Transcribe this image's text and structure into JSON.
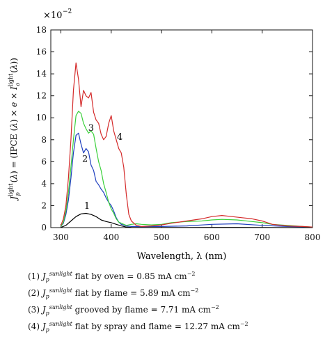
{
  "chart_data": {
    "type": "line",
    "xlabel": "Wavelength, λ (nm)",
    "ylabel": "J_p^light(λ) = (IPCE(λ) × e × I_o^light(λ))",
    "y_multiplier": "×10",
    "y_multiplier_exp": "−2",
    "xlim": [
      280,
      800
    ],
    "ylim": [
      0,
      18
    ],
    "xticks": [
      300,
      400,
      500,
      600,
      700,
      800
    ],
    "yticks": [
      0,
      2,
      4,
      6,
      8,
      10,
      12,
      14,
      16,
      18
    ],
    "grid": false,
    "series": [
      {
        "name": "1",
        "color": "#000000",
        "x": [
          300,
          310,
          320,
          330,
          340,
          350,
          360,
          370,
          380,
          390,
          400,
          410,
          420,
          430,
          440,
          450,
          460,
          500,
          550,
          600,
          650,
          700,
          750,
          800
        ],
        "y": [
          0.02,
          0.2,
          0.6,
          1.0,
          1.25,
          1.3,
          1.2,
          1.0,
          0.7,
          0.55,
          0.45,
          0.3,
          0.15,
          0.05,
          0.02,
          0.01,
          0.01,
          0.01,
          0.01,
          0.02,
          0.02,
          0.01,
          0.0,
          0.0
        ],
        "label_x": 352,
        "label_y": 1.7
      },
      {
        "name": "2",
        "color": "#1f3fbf",
        "x": [
          300,
          305,
          310,
          315,
          320,
          325,
          330,
          335,
          340,
          345,
          350,
          355,
          360,
          365,
          370,
          375,
          380,
          385,
          390,
          395,
          400,
          405,
          410,
          415,
          420,
          430,
          440,
          450,
          460,
          480,
          500,
          550,
          600,
          650,
          700,
          750,
          800
        ],
        "y": [
          0.1,
          0.4,
          1.2,
          2.5,
          4.5,
          6.8,
          8.4,
          8.6,
          7.6,
          6.8,
          7.2,
          6.9,
          5.7,
          5.2,
          4.2,
          3.9,
          3.5,
          3.2,
          2.7,
          2.3,
          2.0,
          1.5,
          0.9,
          0.5,
          0.3,
          0.15,
          0.1,
          0.1,
          0.08,
          0.1,
          0.1,
          0.15,
          0.3,
          0.35,
          0.2,
          0.1,
          0.05
        ],
        "label_x": 348,
        "label_y": 6.0
      },
      {
        "name": "3",
        "color": "#3ad03a",
        "x": [
          300,
          305,
          310,
          315,
          320,
          325,
          330,
          335,
          340,
          345,
          350,
          355,
          360,
          365,
          370,
          375,
          380,
          385,
          390,
          395,
          400,
          405,
          410,
          415,
          420,
          425,
          430,
          440,
          450,
          460,
          480,
          500,
          520,
          550,
          580,
          600,
          620,
          650,
          680,
          700,
          720,
          750,
          780,
          800
        ],
        "y": [
          0.1,
          0.5,
          1.5,
          3.2,
          5.5,
          8.0,
          10.2,
          10.6,
          10.4,
          9.5,
          9.0,
          8.6,
          8.8,
          8.5,
          7.2,
          6.0,
          5.2,
          4.0,
          3.2,
          2.3,
          1.7,
          1.3,
          0.8,
          0.5,
          0.4,
          0.3,
          0.2,
          0.3,
          0.35,
          0.3,
          0.25,
          0.3,
          0.45,
          0.55,
          0.6,
          0.7,
          0.75,
          0.7,
          0.55,
          0.45,
          0.3,
          0.2,
          0.1,
          0.05
        ],
        "label_x": 360,
        "label_y": 8.8
      },
      {
        "name": "4",
        "color": "#d42a2a",
        "x": [
          300,
          305,
          310,
          315,
          320,
          325,
          330,
          335,
          340,
          345,
          350,
          355,
          360,
          365,
          370,
          375,
          380,
          385,
          390,
          395,
          400,
          405,
          410,
          415,
          420,
          425,
          430,
          435,
          440,
          450,
          460,
          480,
          500,
          520,
          550,
          580,
          600,
          620,
          640,
          660,
          680,
          700,
          720,
          750,
          780,
          800
        ],
        "y": [
          0.2,
          0.8,
          2.0,
          4.5,
          8.0,
          12.5,
          15.0,
          13.5,
          11.0,
          12.5,
          12.0,
          11.8,
          12.3,
          10.5,
          9.8,
          9.5,
          8.5,
          8.0,
          8.3,
          9.5,
          10.2,
          8.8,
          8.0,
          7.2,
          6.8,
          5.5,
          3.0,
          1.2,
          0.6,
          0.2,
          0.1,
          0.15,
          0.25,
          0.4,
          0.6,
          0.8,
          1.0,
          1.1,
          1.0,
          0.9,
          0.8,
          0.6,
          0.3,
          0.15,
          0.1,
          0.05
        ],
        "label_x": 417,
        "label_y": 8.0
      }
    ]
  },
  "legend": [
    {
      "num": "(1)",
      "desc": "flat by oven = 0.85 mA cm",
      "exp": "−2"
    },
    {
      "num": "(2)",
      "desc": "flat by flame = 5.89 mA cm",
      "exp": "−2"
    },
    {
      "num": "(3)",
      "desc": "grooved by flame = 7.71 mA cm",
      "exp": "−2"
    },
    {
      "num": "(4)",
      "desc": "flat by spray and flame = 12.27 mA cm",
      "exp": "−2"
    }
  ],
  "legend_symbol": {
    "base": "J",
    "sub": "p",
    "sup": "sunlight"
  }
}
